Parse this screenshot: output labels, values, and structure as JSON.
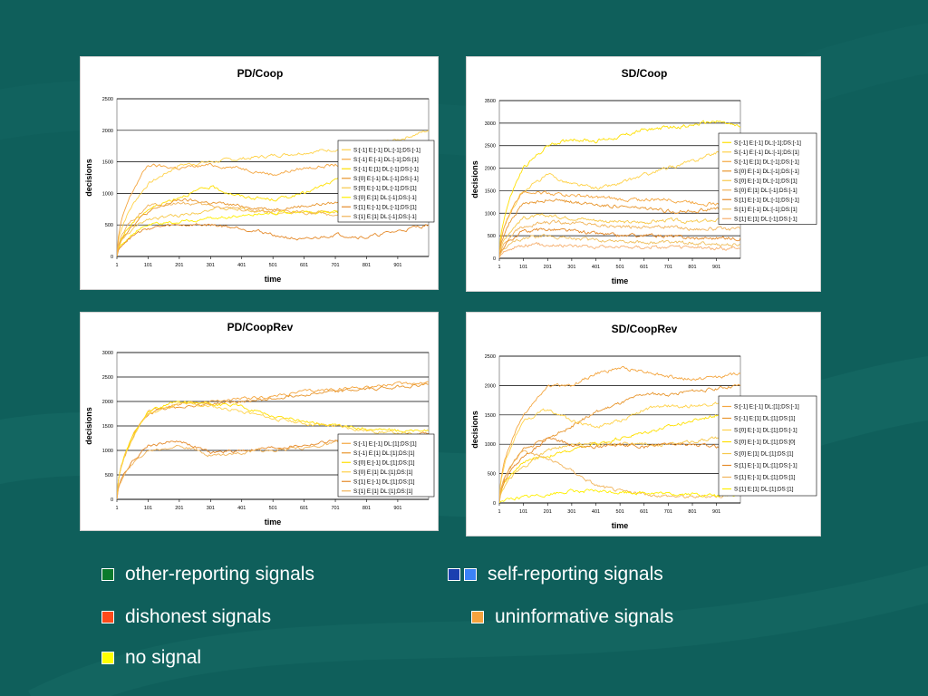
{
  "panels": [
    {
      "id": "pd-coop",
      "title": "PD/Coop",
      "xlabel": "time",
      "ylabel": "decisions",
      "ymax": 2500,
      "yticks": [
        0,
        500,
        1000,
        1500,
        2000,
        2500
      ],
      "xticks": [
        "1",
        "101",
        "201",
        "301",
        "401",
        "501",
        "601",
        "701",
        "801",
        "901"
      ],
      "legend": [
        "S:[-1] E:[-1] DL:[-1];DS:[-1]",
        "S:[-1] E:[-1] DL:[-1];DS:[1]",
        "S:[-1] E:[1] DL:[-1];DS:[-1]",
        "S:[0] E:[-1] DL:[-1];DS:[-1]",
        "S:[0] E:[-1] DL:[-1];DS:[1]",
        "S:[0] E:[1] DL:[-1];DS:[-1]",
        "S:[1] E:[-1] DL:[-1];DS:[1]",
        "S:[1] E:[1] DL:[-1];DS:[-1]"
      ]
    },
    {
      "id": "sd-coop",
      "title": "SD/Coop",
      "xlabel": "time",
      "ylabel": "decisions",
      "ymax": 3500,
      "yticks": [
        0,
        500,
        1000,
        1500,
        2000,
        2500,
        3000,
        3500
      ],
      "xticks": [
        "1",
        "101",
        "201",
        "301",
        "401",
        "501",
        "601",
        "701",
        "801",
        "901"
      ],
      "legend": [
        "S:[-1] E:[-1] DL:[-1];DS:[-1]",
        "S:[-1] E:[-1] DL:[-1];DS:[1]",
        "S:[-1] E:[1] DL:[-1];DS:[-1]",
        "S:[0] E:[-1] DL:[-1];DS:[-1]",
        "S:[0] E:[-1] DL:[-1];DS:[1]",
        "S:[0] E:[1] DL:[-1];DS:[-1]",
        "S:[1] E:[-1] DL:[-1];DS:[-1]",
        "S:[1] E:[-1] DL:[-1];DS:[1]",
        "S:[1] E:[1] DL:[-1];DS:[-1]"
      ]
    },
    {
      "id": "pd-cooprev",
      "title": "PD/CoopRev",
      "xlabel": "time",
      "ylabel": "decisions",
      "ymax": 3000,
      "yticks": [
        0,
        500,
        1000,
        1500,
        2000,
        2500,
        3000
      ],
      "xticks": [
        "1",
        "101",
        "201",
        "301",
        "401",
        "501",
        "601",
        "701",
        "801",
        "901"
      ],
      "legend": [
        "S:[-1] E:[-1] DL:[1];DS:[1]",
        "S:[-1] E:[1] DL:[1];DS:[1]",
        "S:[0] E:[-1] DL:[1];DS:[1]",
        "S:[0] E:[1] DL:[1];DS:[1]",
        "S:[1] E:[-1] DL:[1];DS:[1]",
        "S:[1] E:[1] DL:[1];DS:[1]"
      ]
    },
    {
      "id": "sd-cooprev",
      "title": "SD/CoopRev",
      "xlabel": "time",
      "ylabel": "decisions",
      "ymax": 2500,
      "yticks": [
        0,
        500,
        1000,
        1500,
        2000,
        2500
      ],
      "xticks": [
        "1",
        "101",
        "201",
        "301",
        "401",
        "501",
        "601",
        "701",
        "801",
        "901"
      ],
      "legend": [
        "S:[-1] E:[-1] DL:[1];DS:[-1]",
        "S:[-1] E:[1] DL:[1];DS:[1]",
        "S:[0] E:[-1] DL:[1];DS:[-1]",
        "S:[0] E:[-1] DL:[1];DS:[0]",
        "S:[0] E:[1] DL:[1];DS:[1]",
        "S:[1] E:[-1] DL:[1];DS:[-1]",
        "S:[1] E:[-1] DL:[1];DS:[1]",
        "S:[1] E:[1] DL:[1];DS:[1]"
      ]
    }
  ],
  "chart_data": [
    {
      "type": "line",
      "title": "PD/Coop",
      "xlabel": "time",
      "ylabel": "decisions",
      "ylim": [
        0,
        2500
      ],
      "x": [
        1,
        101,
        201,
        301,
        401,
        501,
        601,
        701,
        801,
        901,
        1000
      ],
      "series": [
        {
          "name": "S:[-1] E:[-1] DL:[-1];DS:[-1]",
          "color": "#ffd24a",
          "values": [
            0,
            1150,
            1450,
            1500,
            1550,
            1600,
            1650,
            1700,
            1750,
            1850,
            2000
          ]
        },
        {
          "name": "S:[-1] E:[-1] DL:[-1];DS:[1]",
          "color": "#f4a640",
          "values": [
            0,
            1450,
            1400,
            1450,
            1400,
            1300,
            1400,
            1450,
            1400,
            1450,
            1500
          ]
        },
        {
          "name": "S:[-1] E:[1] DL:[-1];DS:[-1]",
          "color": "#ffe000",
          "values": [
            0,
            750,
            950,
            1100,
            950,
            900,
            1000,
            1200,
            1250,
            1300,
            1400
          ]
        },
        {
          "name": "S:[0] E:[-1] DL:[-1];DS:[-1]",
          "color": "#e8962e",
          "values": [
            0,
            700,
            900,
            850,
            800,
            750,
            800,
            850,
            900,
            950,
            1000
          ]
        },
        {
          "name": "S:[0] E:[-1] DL:[-1];DS:[1]",
          "color": "#f7c84a",
          "values": [
            0,
            600,
            650,
            750,
            750,
            700,
            700,
            700,
            750,
            800,
            800
          ]
        },
        {
          "name": "S:[0] E:[1] DL:[-1];DS:[-1]",
          "color": "#ffef00",
          "values": [
            0,
            500,
            550,
            600,
            650,
            700,
            700,
            700,
            650,
            600,
            600
          ]
        },
        {
          "name": "S:[1] E:[-1] DL:[-1];DS:[1]",
          "color": "#e58a2a",
          "values": [
            0,
            450,
            500,
            500,
            450,
            350,
            250,
            350,
            300,
            400,
            500
          ]
        },
        {
          "name": "S:[1] E:[1] DL:[-1];DS:[-1]",
          "color": "#f1b45a",
          "values": [
            0,
            800,
            850,
            800,
            750,
            700,
            700,
            650,
            700,
            650,
            650
          ]
        }
      ]
    },
    {
      "type": "line",
      "title": "SD/Coop",
      "xlabel": "time",
      "ylabel": "decisions",
      "ylim": [
        0,
        3500
      ],
      "x": [
        1,
        101,
        201,
        301,
        401,
        501,
        601,
        701,
        801,
        901,
        1000
      ],
      "series": [
        {
          "name": "S:[-1] E:[-1] DL:[-1];DS:[-1]",
          "color": "#ffe000",
          "values": [
            0,
            2000,
            2500,
            2650,
            2600,
            2700,
            2850,
            2900,
            2950,
            3050,
            2900
          ]
        },
        {
          "name": "S:[-1] E:[-1] DL:[-1];DS:[1]",
          "color": "#ffd24a",
          "values": [
            0,
            1500,
            1850,
            1650,
            1550,
            1650,
            1850,
            2000,
            2150,
            2350,
            2450
          ]
        },
        {
          "name": "S:[-1] E:[1] DL:[-1];DS:[-1]",
          "color": "#f4a640",
          "values": [
            0,
            1500,
            1450,
            1400,
            1350,
            1300,
            1300,
            1300,
            1250,
            1200,
            1250
          ]
        },
        {
          "name": "S:[0] E:[-1] DL:[-1];DS:[-1]",
          "color": "#e8962e",
          "values": [
            0,
            1200,
            1300,
            1250,
            1200,
            1150,
            1100,
            1050,
            1050,
            1100,
            1100
          ]
        },
        {
          "name": "S:[0] E:[-1] DL:[-1];DS:[1]",
          "color": "#f7c84a",
          "values": [
            0,
            900,
            950,
            900,
            850,
            800,
            800,
            850,
            800,
            850,
            800
          ]
        },
        {
          "name": "S:[0] E:[1] DL:[-1];DS:[-1]",
          "color": "#f1b45a",
          "values": [
            0,
            700,
            800,
            800,
            750,
            700,
            700,
            700,
            650,
            650,
            650
          ]
        },
        {
          "name": "S:[1] E:[-1] DL:[-1];DS:[-1]",
          "color": "#e58a2a",
          "values": [
            0,
            600,
            650,
            600,
            550,
            500,
            500,
            500,
            450,
            450,
            450
          ]
        },
        {
          "name": "S:[1] E:[-1] DL:[-1];DS:[1]",
          "color": "#f0c060",
          "values": [
            0,
            450,
            500,
            450,
            400,
            400,
            350,
            350,
            350,
            300,
            300
          ]
        },
        {
          "name": "S:[1] E:[1] DL:[-1];DS:[-1]",
          "color": "#f6b070",
          "values": [
            0,
            300,
            300,
            280,
            260,
            250,
            250,
            240,
            230,
            220,
            220
          ]
        }
      ]
    },
    {
      "type": "line",
      "title": "PD/CoopRev",
      "xlabel": "time",
      "ylabel": "decisions",
      "ylim": [
        0,
        3000
      ],
      "x": [
        1,
        101,
        201,
        301,
        401,
        501,
        601,
        701,
        801,
        901,
        1000
      ],
      "series": [
        {
          "name": "S:[-1] E:[-1] DL:[1];DS:[1]",
          "color": "#f4a640",
          "values": [
            0,
            1800,
            1950,
            2000,
            2050,
            2100,
            2200,
            2250,
            2300,
            2350,
            2400
          ]
        },
        {
          "name": "S:[-1] E:[1] DL:[1];DS:[1]",
          "color": "#e8962e",
          "values": [
            0,
            1750,
            1900,
            1950,
            2000,
            2050,
            2150,
            2200,
            2250,
            2300,
            2350
          ]
        },
        {
          "name": "S:[0] E:[-1] DL:[1];DS:[1]",
          "color": "#ffe000",
          "values": [
            0,
            1800,
            2000,
            1950,
            1900,
            1700,
            1600,
            1500,
            1450,
            1400,
            1400
          ]
        },
        {
          "name": "S:[0] E:[1] DL:[1];DS:[1]",
          "color": "#ffd24a",
          "values": [
            0,
            1750,
            1950,
            1900,
            1800,
            1650,
            1550,
            1500,
            1400,
            1350,
            1300
          ]
        },
        {
          "name": "S:[1] E:[-1] DL:[1];DS:[1]",
          "color": "#e58a2a",
          "values": [
            0,
            1100,
            1200,
            950,
            1000,
            1050,
            1100,
            1200,
            1250,
            1300,
            1350
          ]
        },
        {
          "name": "S:[1] E:[1] DL:[1];DS:[1]",
          "color": "#f1b45a",
          "values": [
            0,
            1000,
            1100,
            900,
            950,
            1000,
            1050,
            1150,
            1200,
            1250,
            1300
          ]
        }
      ]
    },
    {
      "type": "line",
      "title": "SD/CoopRev",
      "xlabel": "time",
      "ylabel": "decisions",
      "ylim": [
        0,
        2500
      ],
      "x": [
        1,
        101,
        201,
        301,
        401,
        501,
        601,
        701,
        801,
        901,
        1000
      ],
      "series": [
        {
          "name": "S:[-1] E:[-1] DL:[1];DS:[-1]",
          "color": "#f4a640",
          "values": [
            0,
            1500,
            2000,
            2000,
            2200,
            2300,
            2250,
            2150,
            2100,
            2150,
            2200
          ]
        },
        {
          "name": "S:[-1] E:[1] DL:[1];DS:[1]",
          "color": "#e8962e",
          "values": [
            0,
            900,
            1100,
            1300,
            1550,
            1700,
            1850,
            1850,
            1900,
            1950,
            2000
          ]
        },
        {
          "name": "S:[0] E:[-1] DL:[1];DS:[-1]",
          "color": "#ffd24a",
          "values": [
            0,
            1400,
            1600,
            1400,
            1300,
            1400,
            1600,
            1650,
            1650,
            1700,
            1650
          ]
        },
        {
          "name": "S:[0] E:[-1] DL:[1];DS:[0]",
          "color": "#ffe000",
          "values": [
            0,
            700,
            800,
            900,
            1000,
            1100,
            1200,
            1300,
            1400,
            1500,
            1500
          ]
        },
        {
          "name": "S:[0] E:[1] DL:[1];DS:[1]",
          "color": "#f7c84a",
          "values": [
            0,
            600,
            900,
            1000,
            1000,
            1000,
            1000,
            1000,
            1050,
            1100,
            1150
          ]
        },
        {
          "name": "S:[1] E:[-1] DL:[1];DS:[-1]",
          "color": "#e58a2a",
          "values": [
            0,
            800,
            1100,
            1000,
            950,
            1000,
            950,
            1000,
            1000,
            950,
            1000
          ]
        },
        {
          "name": "S:[1] E:[-1] DL:[1];DS:[1]",
          "color": "#f1b45a",
          "values": [
            0,
            900,
            750,
            550,
            300,
            200,
            150,
            120,
            100,
            120,
            150
          ]
        },
        {
          "name": "S:[1] E:[1] DL:[1];DS:[1]",
          "color": "#ffef00",
          "values": [
            0,
            100,
            150,
            200,
            200,
            180,
            180,
            150,
            150,
            120,
            150
          ]
        }
      ]
    }
  ],
  "legend_keys": [
    {
      "label": "other-reporting signals",
      "colors": [
        "#0b7a2c"
      ]
    },
    {
      "label": "self-reporting signals",
      "colors": [
        "#1a3fb0",
        "#3b82f6"
      ]
    },
    {
      "label": "dishonest signals",
      "colors": [
        "#ff4a1a"
      ]
    },
    {
      "label": "uninformative signals",
      "colors": [
        "#f6a33e"
      ]
    },
    {
      "label": "no signal",
      "colors": [
        "#ffff00"
      ]
    }
  ],
  "colors": {
    "background": "#0f5f5b",
    "panel": "#ffffff",
    "text": "#ffffff"
  }
}
